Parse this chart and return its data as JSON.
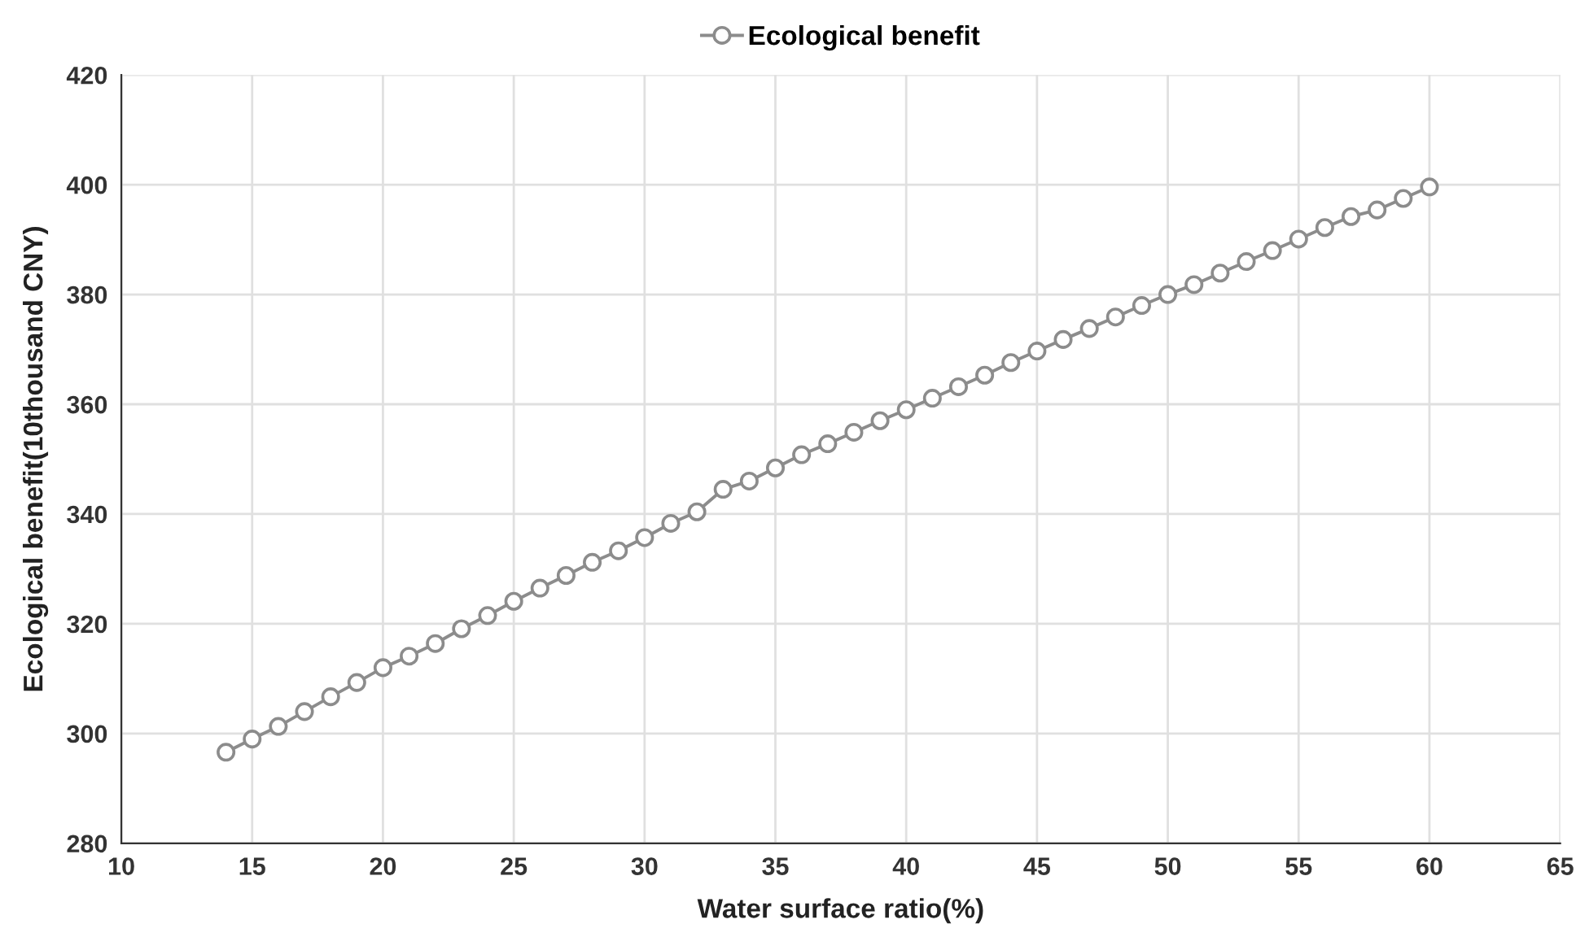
{
  "chart_data": {
    "type": "line",
    "xlabel": "Water surface ratio(%)",
    "ylabel": "Ecological benefit(10thousand CNY)",
    "xlim": [
      10,
      65
    ],
    "xticks": [
      10,
      15,
      20,
      25,
      30,
      35,
      40,
      45,
      50,
      55,
      60,
      65
    ],
    "ylim": [
      280,
      420
    ],
    "yticks": [
      280,
      300,
      320,
      340,
      360,
      380,
      400,
      420
    ],
    "grid": true,
    "legend": "top",
    "marker": "circle",
    "line_style": "solid",
    "series": [
      {
        "name": "Ecological benefit",
        "color": "#8c8c8c",
        "x": [
          14,
          15,
          16,
          17,
          18,
          19,
          20,
          21,
          22,
          23,
          24,
          25,
          26,
          27,
          28,
          29,
          30,
          31,
          32,
          33,
          34,
          35,
          36,
          37,
          38,
          39,
          40,
          41,
          42,
          43,
          44,
          45,
          46,
          47,
          48,
          49,
          50,
          51,
          52,
          53,
          54,
          55,
          56,
          57,
          58,
          59,
          60
        ],
        "values": [
          296.6,
          299.0,
          301.3,
          304.0,
          306.7,
          309.3,
          312.0,
          314.1,
          316.4,
          319.1,
          321.5,
          324.1,
          326.5,
          328.8,
          331.2,
          333.3,
          335.7,
          338.3,
          340.4,
          344.5,
          346.0,
          348.4,
          350.8,
          352.8,
          354.9,
          357.0,
          359.0,
          361.1,
          363.2,
          365.3,
          367.6,
          369.7,
          371.8,
          373.8,
          375.9,
          378.0,
          380.0,
          381.8,
          383.9,
          386.0,
          388.0,
          390.1,
          392.2,
          394.2,
          395.4,
          397.5,
          399.6
        ]
      }
    ]
  }
}
